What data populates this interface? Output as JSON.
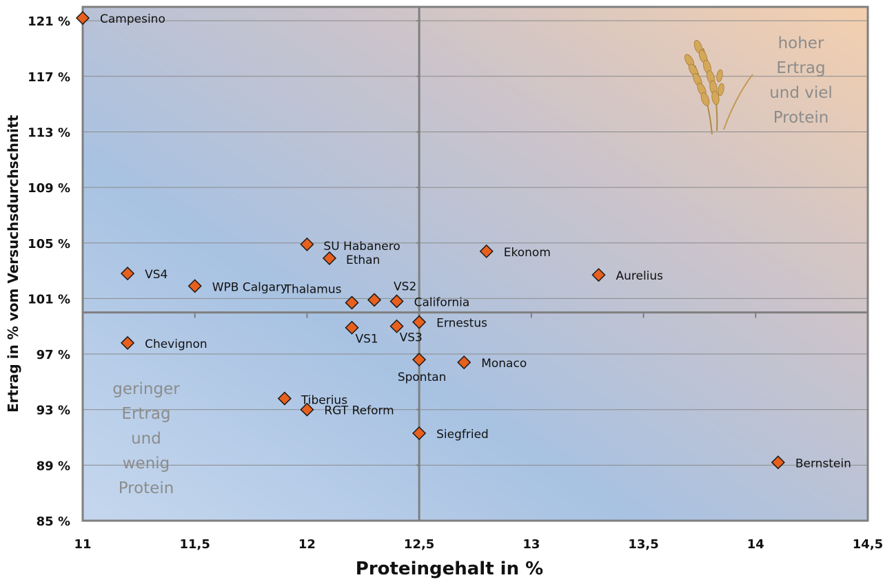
{
  "chart_data": {
    "type": "scatter",
    "xlabel": "Proteingehalt in %",
    "ylabel": "Ertrag in % vom Versuchsdurchschnitt",
    "xlim": [
      11,
      14.5
    ],
    "ylim": [
      85,
      122
    ],
    "x_ticks": [
      {
        "value": 11,
        "label": "11"
      },
      {
        "value": 11.5,
        "label": "11,5"
      },
      {
        "value": 12,
        "label": "12"
      },
      {
        "value": 12.5,
        "label": "12,5"
      },
      {
        "value": 13,
        "label": "13"
      },
      {
        "value": 13.5,
        "label": "13,5"
      },
      {
        "value": 14,
        "label": "14"
      },
      {
        "value": 14.5,
        "label": "14,5"
      }
    ],
    "y_ticks": [
      {
        "value": 85,
        "label": "85 %"
      },
      {
        "value": 89,
        "label": "89 %"
      },
      {
        "value": 93,
        "label": "93 %"
      },
      {
        "value": 97,
        "label": "97 %"
      },
      {
        "value": 101,
        "label": "101 %"
      },
      {
        "value": 105,
        "label": "105 %"
      },
      {
        "value": 109,
        "label": "109 %"
      },
      {
        "value": 113,
        "label": "113 %"
      },
      {
        "value": 117,
        "label": "117 %"
      },
      {
        "value": 121,
        "label": "121 %"
      }
    ],
    "reference_lines": {
      "x": 12.5,
      "y": 100
    },
    "grid": true,
    "marker_color": "#e8601e",
    "points": [
      {
        "label": "Campesino",
        "x": 11.0,
        "y": 121.2
      },
      {
        "label": "SU Habanero",
        "x": 12.0,
        "y": 104.9
      },
      {
        "label": "Ethan",
        "x": 12.1,
        "y": 103.9
      },
      {
        "label": "Ekonom",
        "x": 12.8,
        "y": 104.4
      },
      {
        "label": "VS4",
        "x": 11.2,
        "y": 102.8
      },
      {
        "label": "WPB Calgary",
        "x": 11.5,
        "y": 101.9
      },
      {
        "label": "Aurelius",
        "x": 13.3,
        "y": 102.7
      },
      {
        "label": "Thalamus",
        "x": 12.2,
        "y": 100.7
      },
      {
        "label": "VS2",
        "x": 12.3,
        "y": 100.9
      },
      {
        "label": "California",
        "x": 12.4,
        "y": 100.8
      },
      {
        "label": "Ernestus",
        "x": 12.5,
        "y": 99.3
      },
      {
        "label": "VS1",
        "x": 12.2,
        "y": 98.9
      },
      {
        "label": "VS3",
        "x": 12.4,
        "y": 99.0
      },
      {
        "label": "Chevignon",
        "x": 11.2,
        "y": 97.8
      },
      {
        "label": "Spontan",
        "x": 12.5,
        "y": 96.6
      },
      {
        "label": "Monaco",
        "x": 12.7,
        "y": 96.4
      },
      {
        "label": "Tiberius",
        "x": 11.9,
        "y": 93.8
      },
      {
        "label": "RGT Reform",
        "x": 12.0,
        "y": 93.0
      },
      {
        "label": "Siegfried",
        "x": 12.5,
        "y": 91.3
      },
      {
        "label": "Bernstein",
        "x": 14.1,
        "y": 89.2
      }
    ],
    "annotations": [
      {
        "quadrant": "top-right",
        "lines": [
          "hoher",
          "Ertrag",
          "und viel",
          "Protein"
        ]
      },
      {
        "quadrant": "bottom-left",
        "lines": [
          "geringer",
          "Ertrag",
          "und",
          "wenig",
          "Protein"
        ]
      }
    ],
    "decoration": "wheat-icon"
  }
}
